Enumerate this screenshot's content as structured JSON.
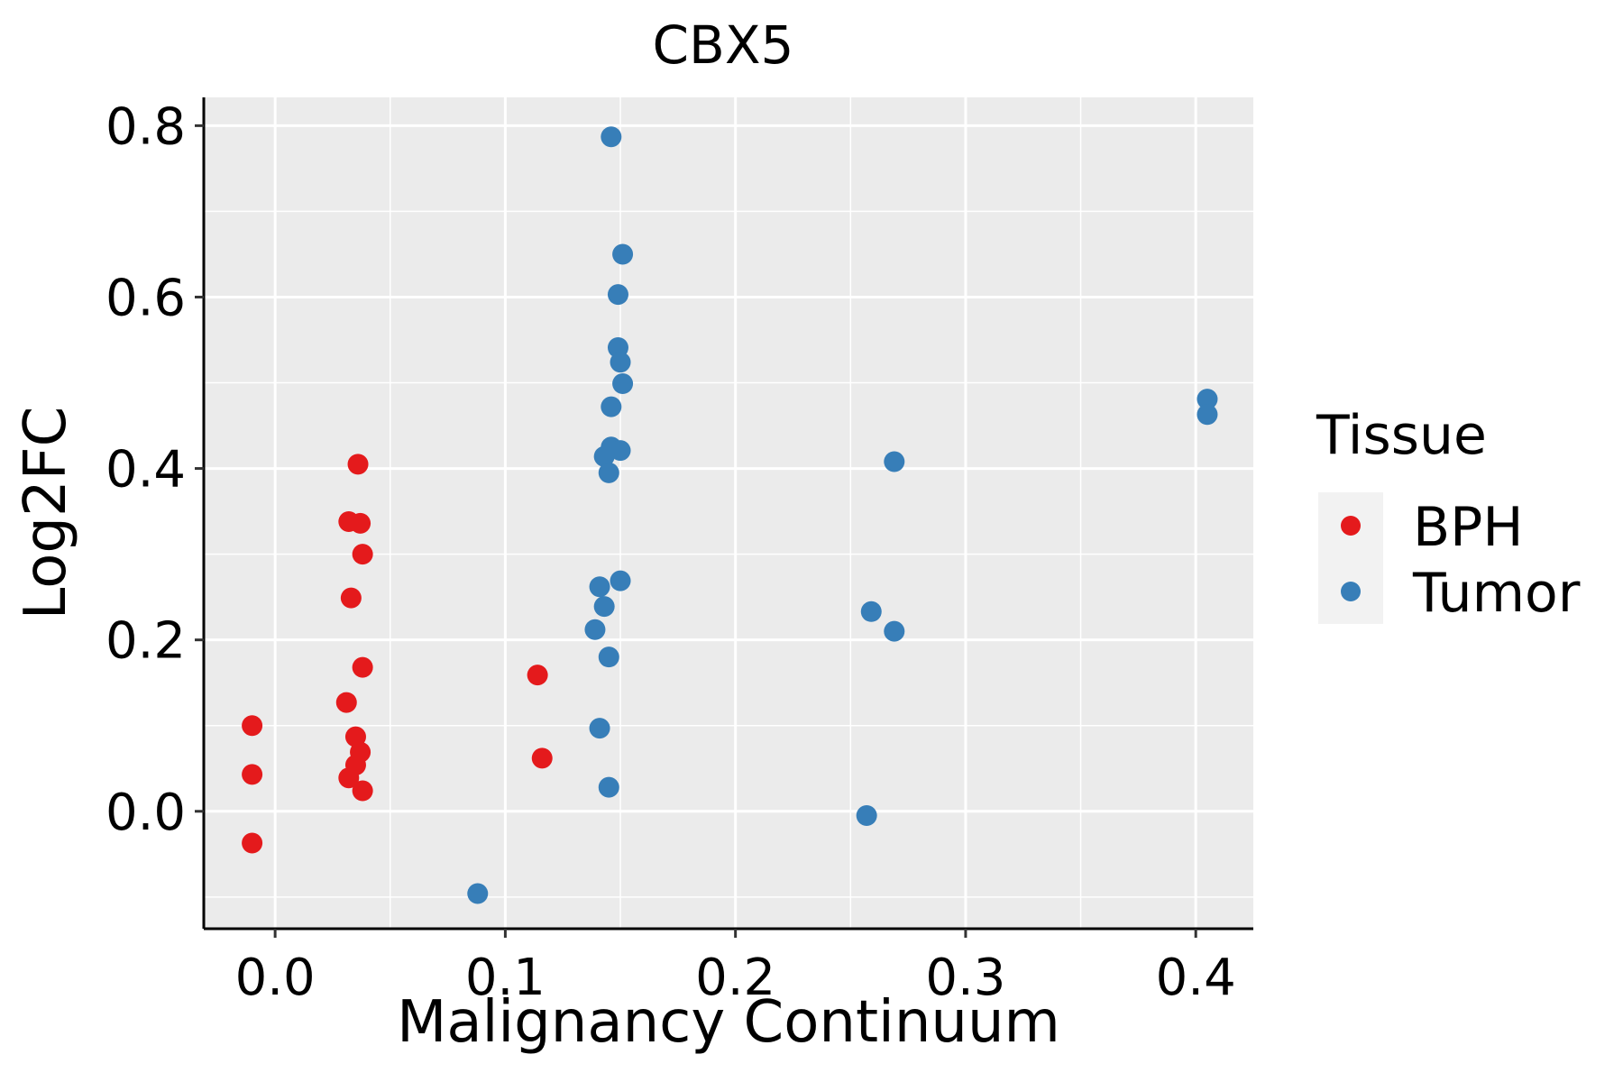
{
  "chart_data": {
    "type": "scatter",
    "title": "CBX5",
    "xlabel": "Malignancy Continuum",
    "ylabel": "Log2FC",
    "xlim": [
      -0.031,
      0.425
    ],
    "ylim": [
      -0.137,
      0.833
    ],
    "x_ticks": [
      0.0,
      0.1,
      0.2,
      0.3,
      0.4
    ],
    "x_tick_labels": [
      "0.0",
      "0.1",
      "0.2",
      "0.3",
      "0.4"
    ],
    "y_ticks": [
      0.0,
      0.2,
      0.4,
      0.6,
      0.8
    ],
    "y_tick_labels": [
      "0.0",
      "0.2",
      "0.4",
      "0.6",
      "0.8"
    ],
    "grid": true,
    "legend": {
      "title": "Tissue",
      "position": "right",
      "entries": [
        {
          "name": "BPH",
          "color": "#E41A1C"
        },
        {
          "name": "Tumor",
          "color": "#377EB8"
        }
      ]
    },
    "series": [
      {
        "name": "BPH",
        "color": "#E41A1C",
        "points": [
          [
            -0.01,
            0.1
          ],
          [
            -0.01,
            0.043
          ],
          [
            -0.01,
            -0.037
          ],
          [
            0.036,
            0.405
          ],
          [
            0.032,
            0.338
          ],
          [
            0.037,
            0.336
          ],
          [
            0.038,
            0.3
          ],
          [
            0.033,
            0.249
          ],
          [
            0.038,
            0.168
          ],
          [
            0.031,
            0.127
          ],
          [
            0.035,
            0.087
          ],
          [
            0.037,
            0.069
          ],
          [
            0.035,
            0.054
          ],
          [
            0.032,
            0.039
          ],
          [
            0.038,
            0.024
          ],
          [
            0.114,
            0.159
          ],
          [
            0.116,
            0.062
          ]
        ]
      },
      {
        "name": "Tumor",
        "color": "#377EB8",
        "points": [
          [
            0.146,
            0.787
          ],
          [
            0.151,
            0.65
          ],
          [
            0.149,
            0.603
          ],
          [
            0.149,
            0.541
          ],
          [
            0.15,
            0.524
          ],
          [
            0.151,
            0.499
          ],
          [
            0.146,
            0.472
          ],
          [
            0.146,
            0.425
          ],
          [
            0.15,
            0.421
          ],
          [
            0.143,
            0.414
          ],
          [
            0.145,
            0.395
          ],
          [
            0.15,
            0.269
          ],
          [
            0.141,
            0.262
          ],
          [
            0.143,
            0.239
          ],
          [
            0.139,
            0.212
          ],
          [
            0.145,
            0.18
          ],
          [
            0.141,
            0.097
          ],
          [
            0.145,
            0.028
          ],
          [
            0.088,
            -0.096
          ],
          [
            0.269,
            0.408
          ],
          [
            0.259,
            0.233
          ],
          [
            0.269,
            0.21
          ],
          [
            0.257,
            -0.005
          ],
          [
            0.405,
            0.481
          ],
          [
            0.405,
            0.463
          ]
        ]
      }
    ]
  }
}
